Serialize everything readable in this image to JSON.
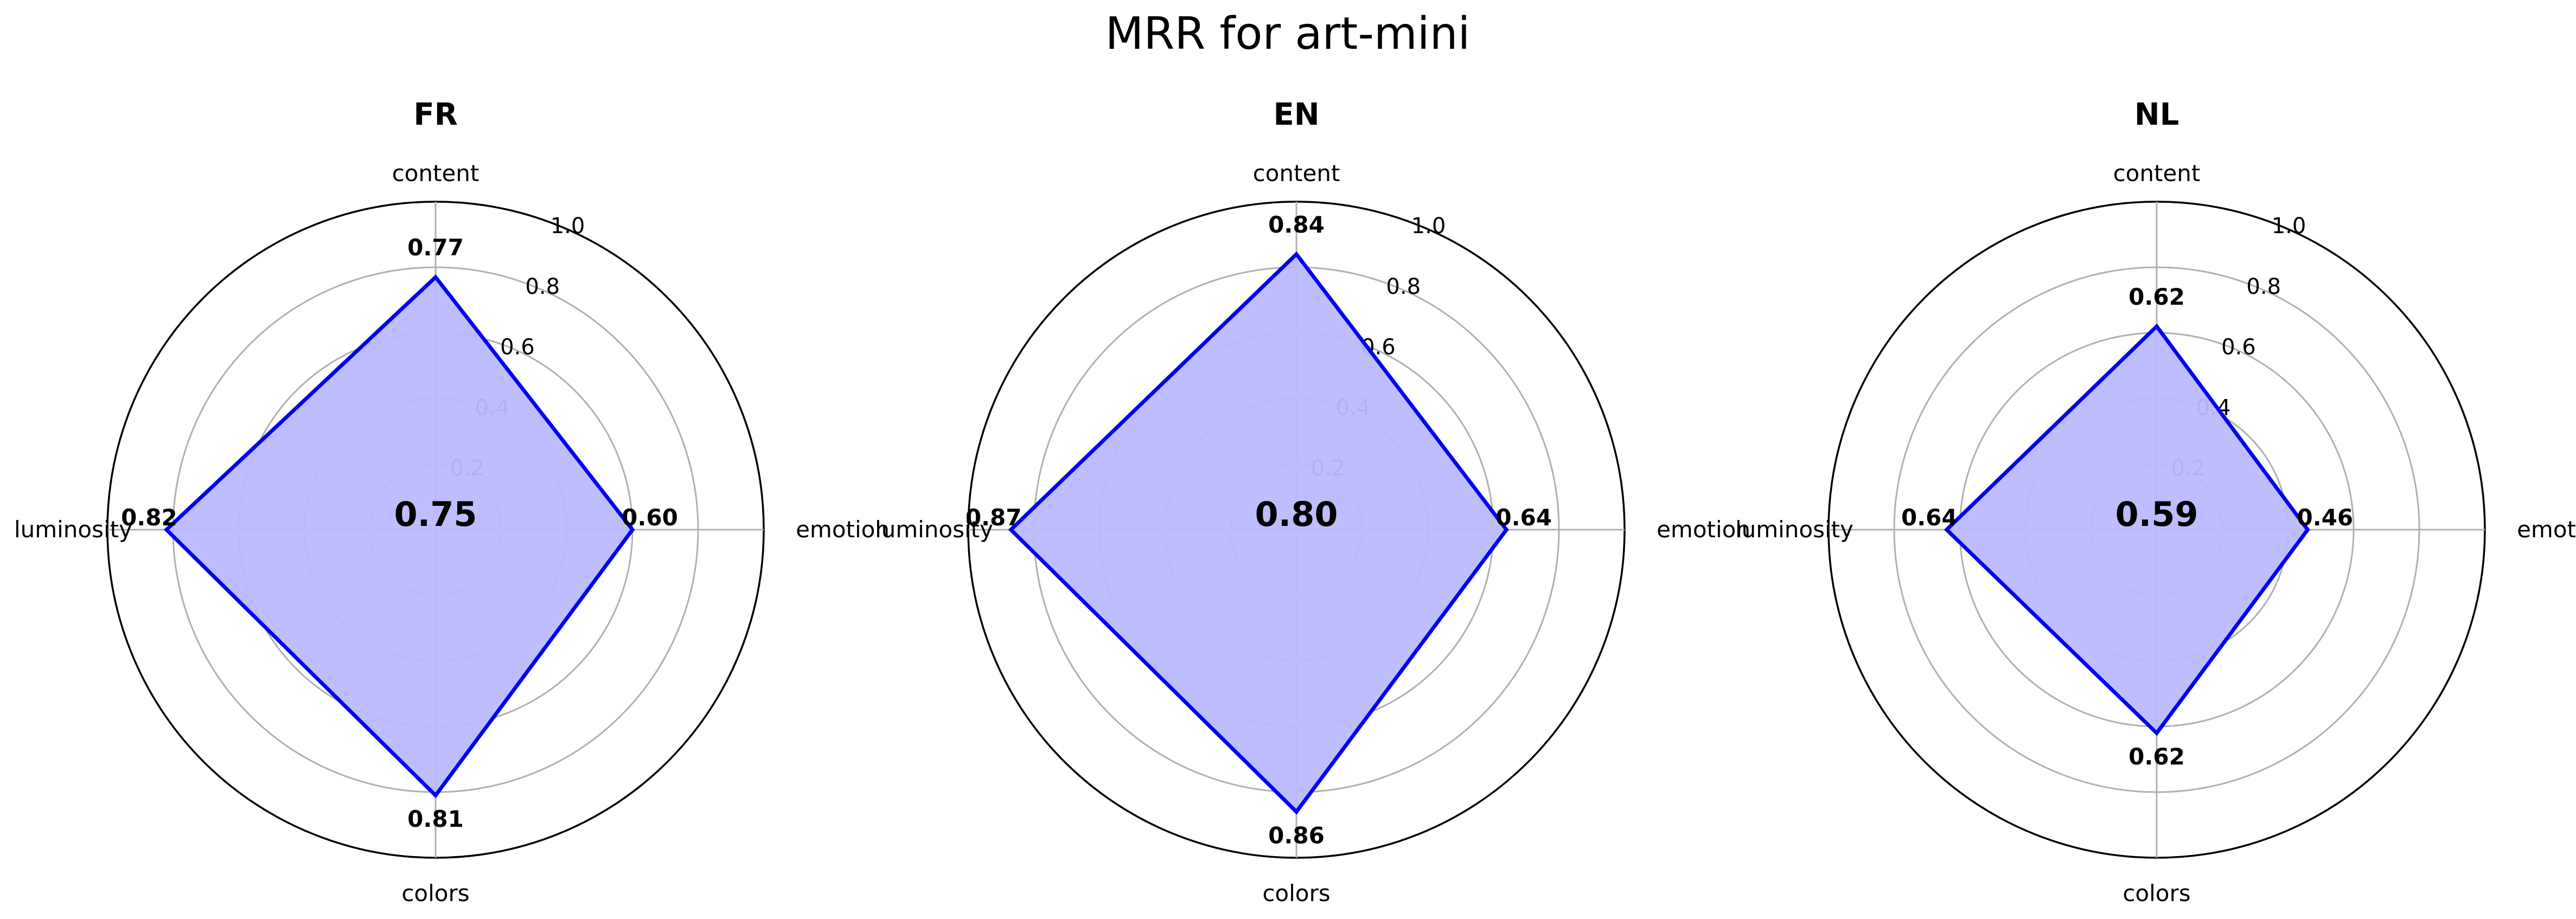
{
  "figure": {
    "title": "MRR for art-mini"
  },
  "style": {
    "line_color": "#0000ee",
    "fill_color": "#bbbbff",
    "grid_color": "#b0b0b0",
    "outer_color": "#000000"
  },
  "chart_data": [
    {
      "type": "radar",
      "title": "FR",
      "axes": [
        "content",
        "emotion",
        "colors",
        "luminosity"
      ],
      "values": [
        0.77,
        0.6,
        0.81,
        0.82
      ],
      "value_labels": [
        "0.77",
        "0.60",
        "0.81",
        "0.82"
      ],
      "center_label": "0.75",
      "rlim": [
        0,
        1.0
      ],
      "rticks": [
        0.2,
        0.4,
        0.6,
        0.8,
        1.0
      ],
      "rtick_labels": [
        "0.2",
        "0.4",
        "0.6",
        "0.8",
        "1.0"
      ],
      "grid": true
    },
    {
      "type": "radar",
      "title": "EN",
      "axes": [
        "content",
        "emotion",
        "colors",
        "luminosity"
      ],
      "values": [
        0.84,
        0.64,
        0.86,
        0.87
      ],
      "value_labels": [
        "0.84",
        "0.64",
        "0.86",
        "0.87"
      ],
      "center_label": "0.80",
      "rlim": [
        0,
        1.0
      ],
      "rticks": [
        0.2,
        0.4,
        0.6,
        0.8,
        1.0
      ],
      "rtick_labels": [
        "0.2",
        "0.4",
        "0.6",
        "0.8",
        "1.0"
      ],
      "grid": true
    },
    {
      "type": "radar",
      "title": "NL",
      "axes": [
        "content",
        "emotion",
        "colors",
        "luminosity"
      ],
      "values": [
        0.62,
        0.46,
        0.62,
        0.64
      ],
      "value_labels": [
        "0.62",
        "0.46",
        "0.62",
        "0.64"
      ],
      "center_label": "0.59",
      "rlim": [
        0,
        1.0
      ],
      "rticks": [
        0.2,
        0.4,
        0.6,
        0.8,
        1.0
      ],
      "rtick_labels": [
        "0.2",
        "0.4",
        "0.6",
        "0.8",
        "1.0"
      ],
      "grid": true
    }
  ]
}
